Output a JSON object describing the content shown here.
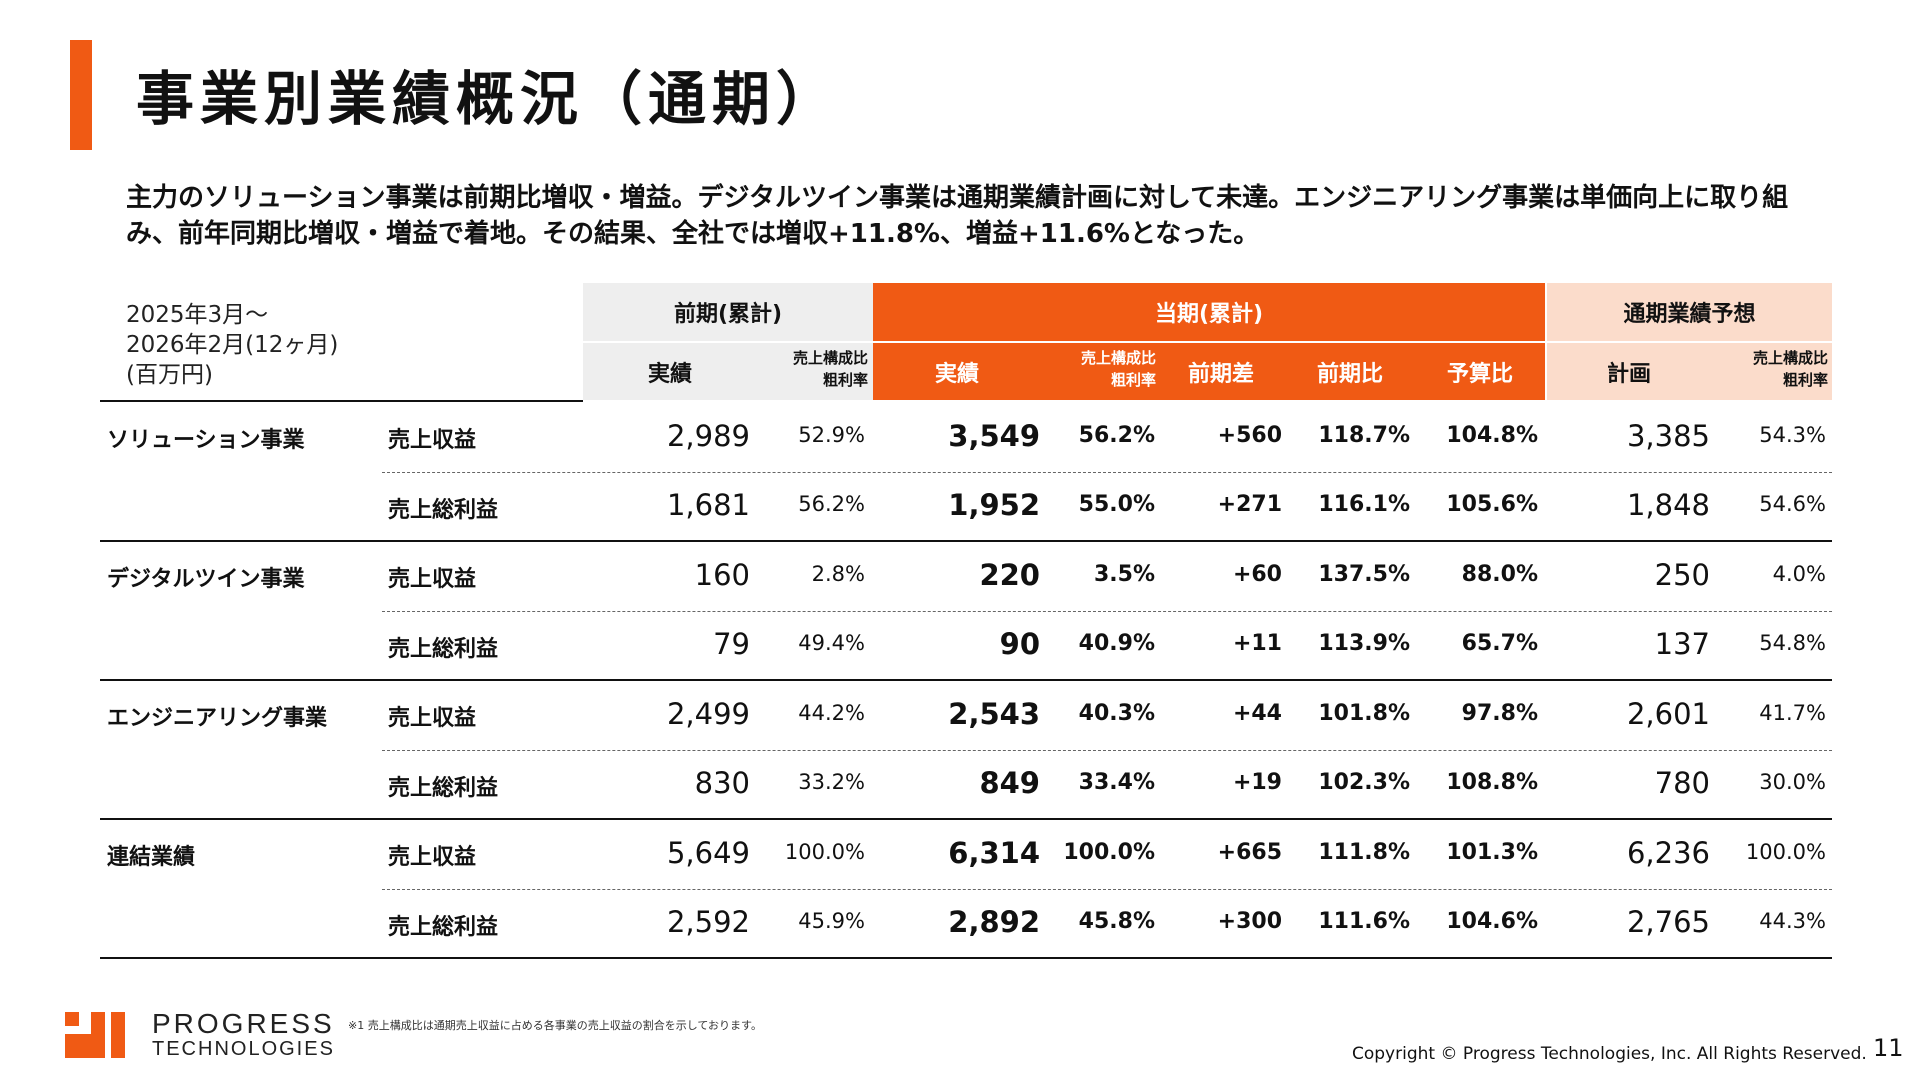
{
  "title": "事業別業績概況（通期）",
  "summary": "主力のソリューション事業は前期比増収・増益。デジタルツイン事業は通期業績計画に対して未達。エンジニアリング事業は単価向上に取り組み、前年同期比増収・増益で着地。その結果、全社では増収+11.8%、増益+11.6%となった。",
  "period": {
    "line1": "2025年3月～",
    "line2": "2026年2月(12ヶ月)",
    "line3": "(百万円)"
  },
  "headers": {
    "prev": "前期(累計)",
    "curr": "当期(累計)",
    "fcst": "通期業績予想",
    "actual": "実績",
    "plan": "計画",
    "ratio_line1": "売上構成比",
    "ratio_line2": "粗利率",
    "diff": "前期差",
    "yoy": "前期比",
    "budget": "予算比"
  },
  "colors": {
    "accent": "#f05a14",
    "prev_header_bg": "#eeeeee",
    "fcst_header_bg": "#fbdccb"
  },
  "rows": [
    {
      "segment": "ソリューション事業",
      "metric": "売上収益",
      "prev": "2,989",
      "prev_ratio": "52.9%",
      "curr": "3,549",
      "curr_ratio": "56.2%",
      "diff": "+560",
      "yoy": "118.7%",
      "budget": "104.8%",
      "plan": "3,385",
      "plan_ratio": "54.3%"
    },
    {
      "segment": "",
      "metric": "売上総利益",
      "prev": "1,681",
      "prev_ratio": "56.2%",
      "curr": "1,952",
      "curr_ratio": "55.0%",
      "diff": "+271",
      "yoy": "116.1%",
      "budget": "105.6%",
      "plan": "1,848",
      "plan_ratio": "54.6%"
    },
    {
      "segment": "デジタルツイン事業",
      "metric": "売上収益",
      "prev": "160",
      "prev_ratio": "2.8%",
      "curr": "220",
      "curr_ratio": "3.5%",
      "diff": "+60",
      "yoy": "137.5%",
      "budget": "88.0%",
      "plan": "250",
      "plan_ratio": "4.0%"
    },
    {
      "segment": "",
      "metric": "売上総利益",
      "prev": "79",
      "prev_ratio": "49.4%",
      "curr": "90",
      "curr_ratio": "40.9%",
      "diff": "+11",
      "yoy": "113.9%",
      "budget": "65.7%",
      "plan": "137",
      "plan_ratio": "54.8%"
    },
    {
      "segment": "エンジニアリング事業",
      "metric": "売上収益",
      "prev": "2,499",
      "prev_ratio": "44.2%",
      "curr": "2,543",
      "curr_ratio": "40.3%",
      "diff": "+44",
      "yoy": "101.8%",
      "budget": "97.8%",
      "plan": "2,601",
      "plan_ratio": "41.7%"
    },
    {
      "segment": "",
      "metric": "売上総利益",
      "prev": "830",
      "prev_ratio": "33.2%",
      "curr": "849",
      "curr_ratio": "33.4%",
      "diff": "+19",
      "yoy": "102.3%",
      "budget": "108.8%",
      "plan": "780",
      "plan_ratio": "30.0%"
    },
    {
      "segment": "連結業績",
      "metric": "売上収益",
      "prev": "5,649",
      "prev_ratio": "100.0%",
      "curr": "6,314",
      "curr_ratio": "100.0%",
      "diff": "+665",
      "yoy": "111.8%",
      "budget": "101.3%",
      "plan": "6,236",
      "plan_ratio": "100.0%"
    },
    {
      "segment": "",
      "metric": "売上総利益",
      "prev": "2,592",
      "prev_ratio": "45.9%",
      "curr": "2,892",
      "curr_ratio": "45.8%",
      "diff": "+300",
      "yoy": "111.6%",
      "budget": "104.6%",
      "plan": "2,765",
      "plan_ratio": "44.3%"
    }
  ],
  "footnote": "※1 売上構成比は通期売上収益に占める各事業の売上収益の割合を示しております。",
  "copyright": "Copyright © Progress Technologies, Inc. All Rights Reserved.",
  "page_number": "11",
  "logo": {
    "line1": "PROGRESS",
    "line2": "TECHNOLOGIES"
  }
}
